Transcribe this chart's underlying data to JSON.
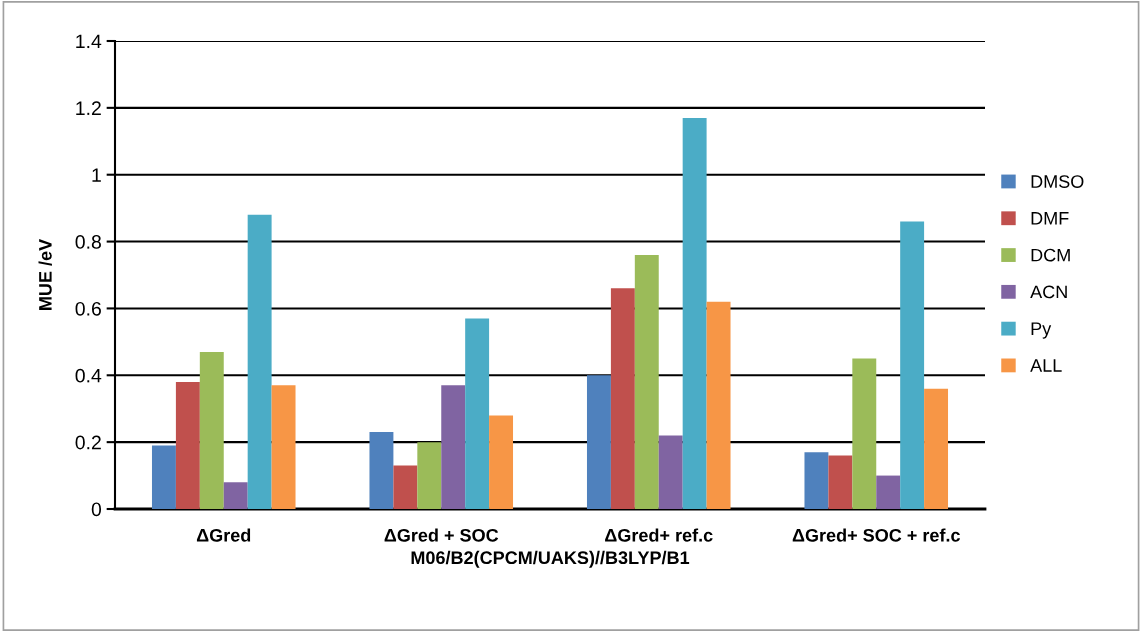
{
  "chart_data": {
    "type": "bar",
    "xlabel": "M06/B2(CPCM/UAKS)//B3LYP/B1",
    "ylabel": "MUE /eV",
    "categories": [
      "ΔGred",
      "ΔGred + SOC",
      "ΔGred+ ref.c",
      "ΔGred+ SOC + ref.c"
    ],
    "series": [
      {
        "name": "DMSO",
        "color": "#4f81bd",
        "values": [
          0.19,
          0.23,
          0.4,
          0.17
        ]
      },
      {
        "name": "DMF",
        "color": "#c0504d",
        "values": [
          0.38,
          0.13,
          0.66,
          0.16
        ]
      },
      {
        "name": "DCM",
        "color": "#9bbb59",
        "values": [
          0.47,
          0.2,
          0.76,
          0.45
        ]
      },
      {
        "name": "ACN",
        "color": "#8064a2",
        "values": [
          0.08,
          0.37,
          0.22,
          0.1
        ]
      },
      {
        "name": "Py",
        "color": "#4bacc6",
        "values": [
          0.88,
          0.57,
          1.17,
          0.86
        ]
      },
      {
        "name": "ALL",
        "color": "#f79646",
        "values": [
          0.37,
          0.28,
          0.62,
          0.36
        ]
      }
    ],
    "ylim": [
      0,
      1.4
    ],
    "yticks": [
      0,
      0.2,
      0.4,
      0.6,
      0.8,
      1,
      1.2,
      1.4
    ],
    "grid": "y",
    "legend": "right"
  }
}
